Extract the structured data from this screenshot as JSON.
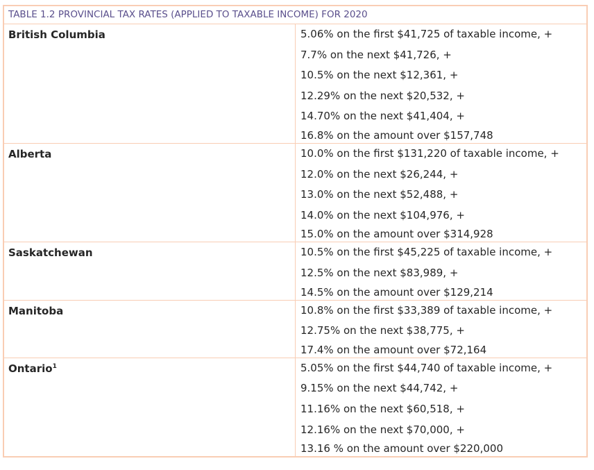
{
  "table": {
    "caption": {
      "number": "TABLE 1.2",
      "title": "PROVINCIAL TAX RATES (APPLIED TO TAXABLE INCOME) FOR 2020"
    },
    "rows": [
      {
        "province": "British Columbia",
        "footnote": "",
        "rates": [
          "5.06% on the first $41,725 of taxable income, +",
          "7.7% on the next $41,726, +",
          "10.5% on the next $12,361, +",
          "12.29% on the next $20,532, +",
          "14.70% on the next $41,404, +",
          "16.8% on the amount over $157,748"
        ]
      },
      {
        "province": "Alberta",
        "footnote": "",
        "rates": [
          "10.0% on the first $131,220 of taxable income, +",
          "12.0% on the next $26,244, +",
          "13.0% on the next $52,488, +",
          "14.0% on the next $104,976, +",
          "15.0% on the amount over $314,928"
        ]
      },
      {
        "province": "Saskatchewan",
        "footnote": "",
        "rates": [
          "10.5% on the first $45,225 of taxable income, +",
          "12.5% on the next $83,989, +",
          "14.5% on the amount over $129,214"
        ]
      },
      {
        "province": "Manitoba",
        "footnote": "",
        "rates": [
          "10.8% on the first $33,389 of taxable income, +",
          "12.75% on the next $38,775, +",
          "17.4% on the amount over $72,164"
        ]
      },
      {
        "province": "Ontario",
        "footnote": "1",
        "rates": [
          "5.05% on the first $44,740 of taxable income, +",
          "9.15% on the next $44,742, +",
          "11.16% on the next $60,518, +",
          "12.16% on the next $70,000, +",
          "13.16 % on the amount over $220,000"
        ]
      }
    ]
  }
}
